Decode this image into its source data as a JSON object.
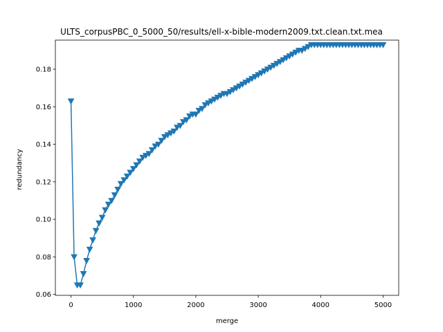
{
  "chart_data": {
    "type": "line",
    "title": "ULTS_corpusPBC_0_5000_50/results/ell-x-bible-modern2009.txt.clean.txt.mea",
    "xlabel": "merge",
    "ylabel": "redundancy",
    "xlim": [
      -250,
      5250
    ],
    "ylim": [
      0.0595,
      0.1955
    ],
    "xticks": [
      0,
      1000,
      2000,
      3000,
      4000,
      5000
    ],
    "yticks": [
      0.06,
      0.08,
      0.1,
      0.12,
      0.14,
      0.16,
      0.18
    ],
    "ytick_labels": [
      "0.06",
      "0.08",
      "0.10",
      "0.12",
      "0.14",
      "0.16",
      "0.18"
    ],
    "grid": false,
    "marker": "triangle-down",
    "color": "#1f77b4",
    "series": [
      {
        "x": [
          0,
          50,
          100,
          150,
          200,
          250,
          300,
          350,
          400,
          450,
          500,
          550,
          600,
          650,
          700,
          750,
          800,
          850,
          900,
          950,
          1000,
          1050,
          1100,
          1150,
          1200,
          1250,
          1300,
          1350,
          1400,
          1450,
          1500,
          1550,
          1600,
          1650,
          1700,
          1750,
          1800,
          1850,
          1900,
          1950,
          2000,
          2050,
          2100,
          2150,
          2200,
          2250,
          2300,
          2350,
          2400,
          2450,
          2500,
          2550,
          2600,
          2650,
          2700,
          2750,
          2800,
          2850,
          2900,
          2950,
          3000,
          3050,
          3100,
          3150,
          3200,
          3250,
          3300,
          3350,
          3400,
          3450,
          3500,
          3550,
          3600,
          3650,
          3700,
          3750,
          3800,
          3850,
          3900,
          3950,
          4000,
          4050,
          4100,
          4150,
          4200,
          4250,
          4300,
          4350,
          4400,
          4450,
          4500,
          4550,
          4600,
          4650,
          4700,
          4750,
          4800,
          4850,
          4900,
          4950,
          5000
        ],
        "y": [
          0.163,
          0.08,
          0.065,
          0.065,
          0.071,
          0.078,
          0.084,
          0.089,
          0.094,
          0.098,
          0.101,
          0.105,
          0.108,
          0.11,
          0.113,
          0.116,
          0.119,
          0.121,
          0.123,
          0.125,
          0.127,
          0.129,
          0.131,
          0.133,
          0.134,
          0.135,
          0.137,
          0.139,
          0.14,
          0.142,
          0.144,
          0.145,
          0.146,
          0.147,
          0.149,
          0.15,
          0.152,
          0.153,
          0.155,
          0.156,
          0.156,
          0.158,
          0.159,
          0.161,
          0.162,
          0.163,
          0.164,
          0.165,
          0.166,
          0.167,
          0.167,
          0.168,
          0.169,
          0.17,
          0.171,
          0.172,
          0.173,
          0.174,
          0.175,
          0.176,
          0.177,
          0.178,
          0.179,
          0.18,
          0.181,
          0.182,
          0.183,
          0.184,
          0.185,
          0.186,
          0.187,
          0.188,
          0.189,
          0.19,
          0.19,
          0.191,
          0.192,
          0.193,
          0.193,
          0.193,
          0.193,
          0.193,
          0.193,
          0.193,
          0.193,
          0.193,
          0.193,
          0.193,
          0.193,
          0.193,
          0.193,
          0.193,
          0.193,
          0.193,
          0.193,
          0.193,
          0.193,
          0.193,
          0.193,
          0.193,
          0.193
        ]
      }
    ]
  }
}
